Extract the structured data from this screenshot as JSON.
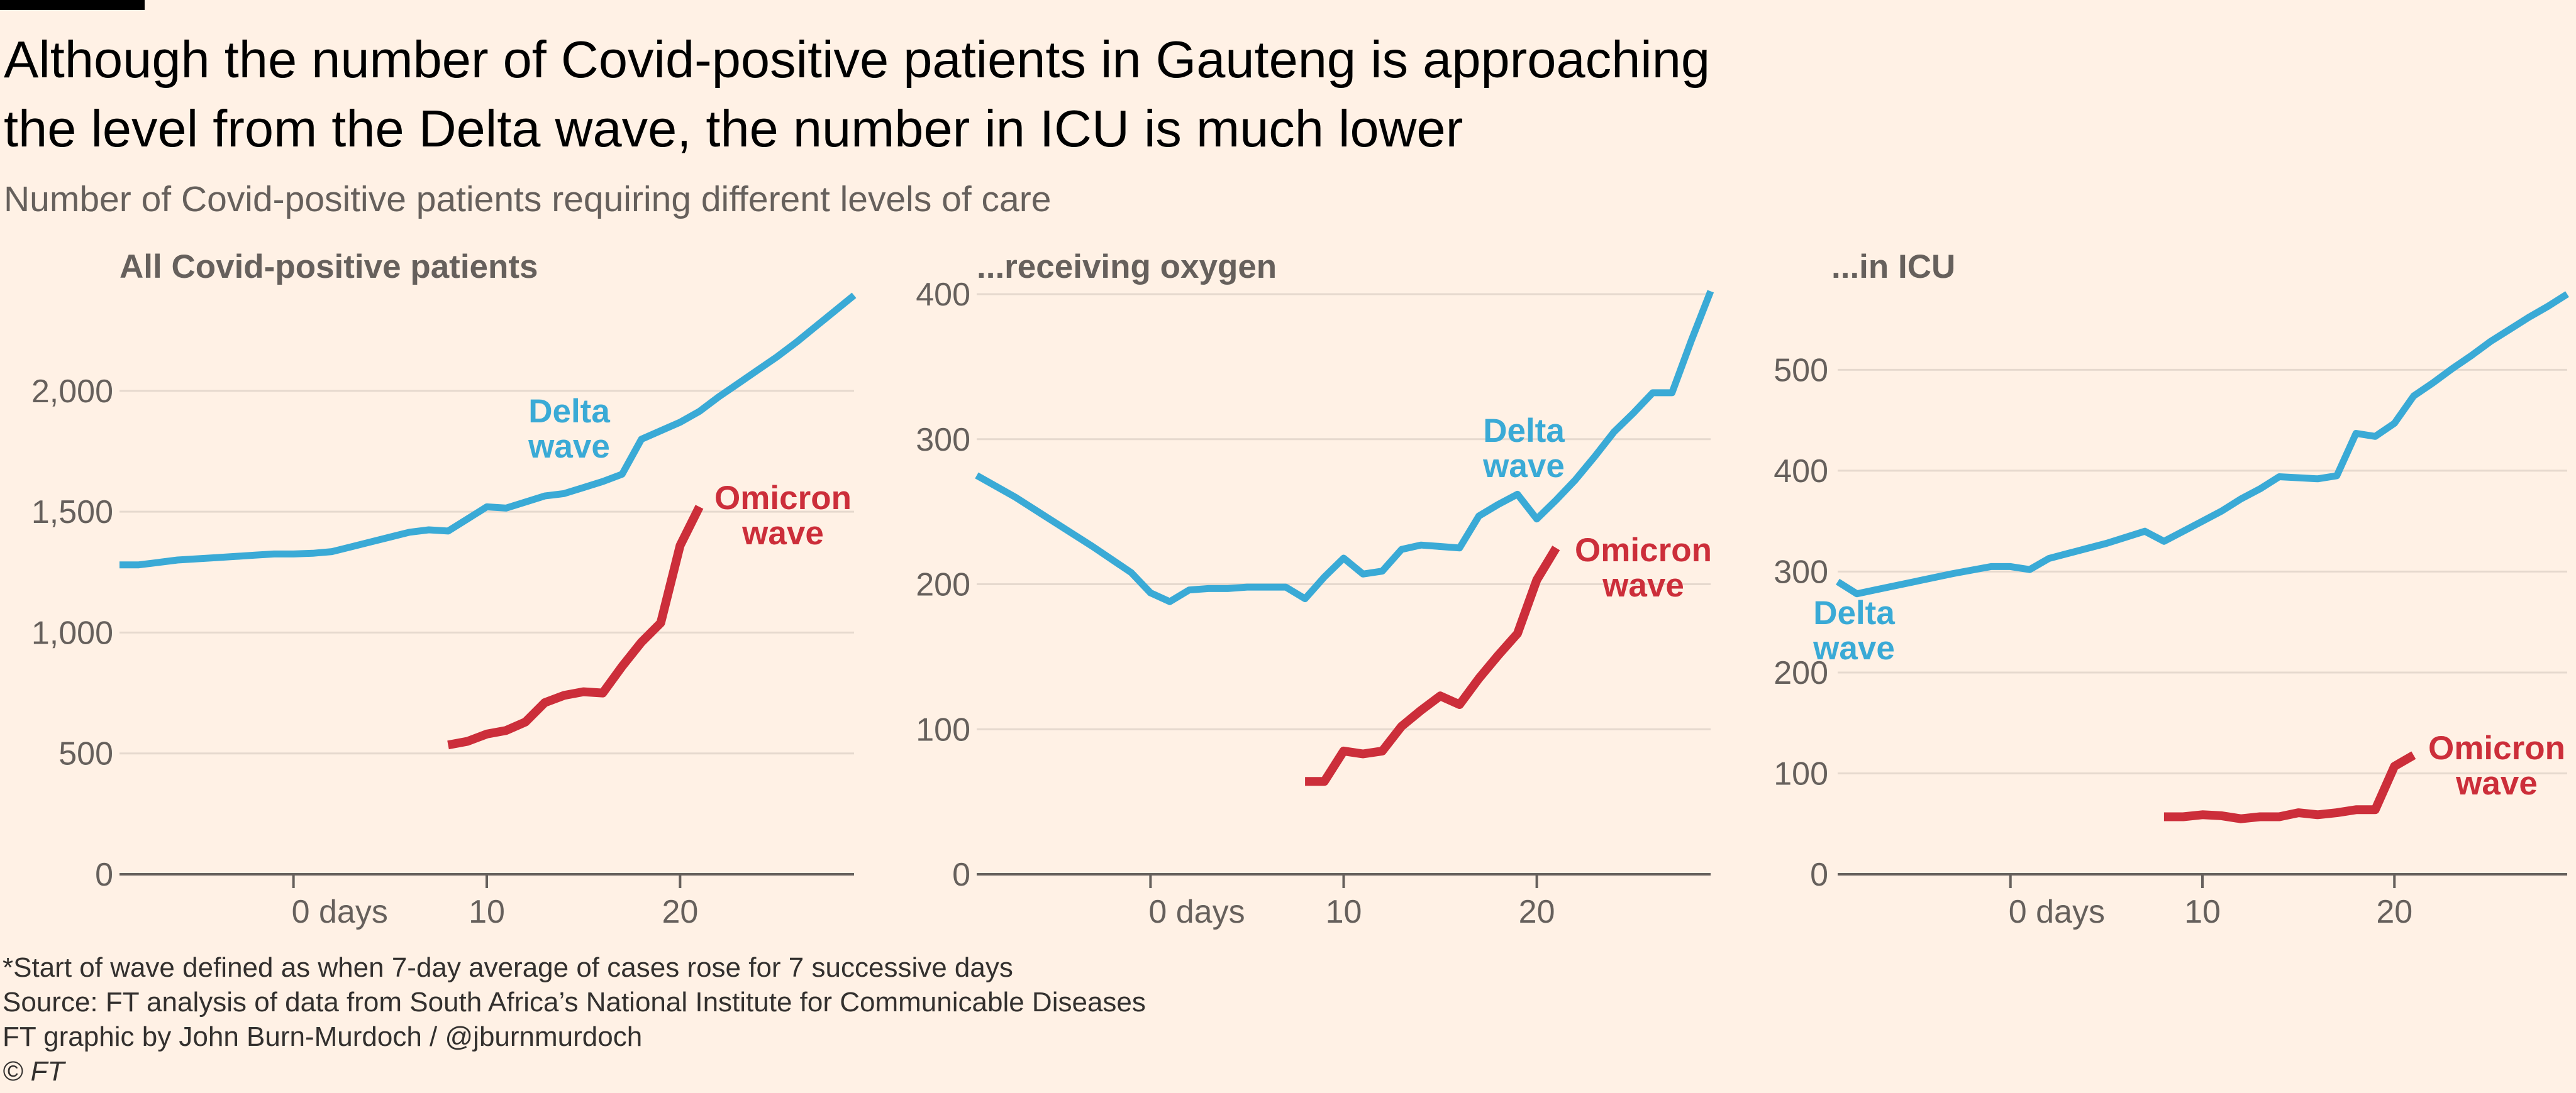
{
  "title": "Although the number of Covid-positive patients in Gauteng is approaching the level from the Delta wave, the number in ICU is much lower",
  "subtitle": "Number of Covid-positive patients requiring different levels of care",
  "footer": {
    "note": "*Start of wave defined as when 7-day average of cases rose for 7 successive days",
    "source": "Source: FT analysis of data from South Africa’s National Institute for Communicable Diseases",
    "credit": "FT graphic by John Burn-Murdoch / @jburnmurdoch",
    "copyright": "© FT"
  },
  "colors": {
    "delta": "#3AAAD6",
    "omicron": "#CC2E3A",
    "background": "#FFF1E5"
  },
  "chart_data": [
    {
      "type": "line",
      "title": "All Covid-positive patients",
      "xlim": [
        -9,
        29
      ],
      "ylim": [
        0,
        2400
      ],
      "x_ticks": [
        0,
        10,
        20
      ],
      "x_tick_labels": [
        "0 days",
        "10",
        "20"
      ],
      "y_ticks": [
        0,
        500,
        1000,
        1500,
        2000
      ],
      "y_tick_labels": [
        "0",
        "500",
        "1,000",
        "1,500",
        "2,000"
      ],
      "series": [
        {
          "name": "Delta wave",
          "label_lines": [
            "Delta",
            "wave"
          ],
          "color": "#3AAAD6",
          "x": [
            -9,
            -8,
            -7,
            -6,
            -5,
            -4,
            -3,
            -2,
            -1,
            0,
            1,
            2,
            3,
            4,
            5,
            6,
            7,
            8,
            9,
            10,
            11,
            12,
            13,
            14,
            15,
            16,
            17,
            18,
            19,
            20,
            21,
            22,
            23,
            24,
            25,
            26,
            27,
            28,
            29
          ],
          "y": [
            1280,
            1280,
            1290,
            1300,
            1305,
            1310,
            1315,
            1320,
            1325,
            1325,
            1328,
            1335,
            1355,
            1375,
            1395,
            1415,
            1425,
            1420,
            1470,
            1520,
            1515,
            1540,
            1565,
            1575,
            1600,
            1625,
            1655,
            1800,
            1835,
            1870,
            1915,
            1975,
            2030,
            2085,
            2140,
            2200,
            2265,
            2330,
            2395
          ]
        },
        {
          "name": "Omicron wave",
          "label_lines": [
            "Omicron",
            "wave"
          ],
          "color": "#CC2E3A",
          "x": [
            8,
            9,
            10,
            11,
            12,
            13,
            14,
            15,
            16,
            17,
            18,
            19,
            20,
            21
          ],
          "y": [
            535,
            550,
            580,
            595,
            630,
            710,
            740,
            755,
            750,
            860,
            960,
            1040,
            1360,
            1520
          ]
        }
      ]
    },
    {
      "type": "line",
      "title": "...receiving oxygen",
      "xlim": [
        -9,
        29
      ],
      "ylim": [
        0,
        400
      ],
      "x_ticks": [
        0,
        10,
        20
      ],
      "x_tick_labels": [
        "0 days",
        "10",
        "20"
      ],
      "y_ticks": [
        0,
        100,
        200,
        300,
        400
      ],
      "y_tick_labels": [
        "0",
        "100",
        "200",
        "300",
        "400"
      ],
      "series": [
        {
          "name": "Delta wave",
          "label_lines": [
            "Delta",
            "wave"
          ],
          "color": "#3AAAD6",
          "x": [
            -9,
            -7,
            -5,
            -3,
            -1,
            0,
            1,
            2,
            3,
            4,
            5,
            6,
            7,
            8,
            9,
            10,
            11,
            12,
            13,
            14,
            15,
            16,
            17,
            18,
            19,
            20,
            21,
            22,
            23,
            24,
            25,
            26,
            27,
            28,
            29
          ],
          "y": [
            275,
            260,
            243,
            226,
            208,
            194,
            188,
            196,
            197,
            197,
            198,
            198,
            198,
            190,
            205,
            218,
            207,
            209,
            224,
            227,
            226,
            225,
            247,
            255,
            262,
            245,
            258,
            272,
            288,
            305,
            318,
            332,
            332,
            368,
            402
          ]
        },
        {
          "name": "Omicron wave",
          "label_lines": [
            "Omicron",
            "wave"
          ],
          "color": "#CC2E3A",
          "x": [
            8,
            9,
            10,
            11,
            12,
            13,
            14,
            15,
            16,
            17,
            18,
            19,
            20,
            21
          ],
          "y": [
            64,
            64,
            85,
            83,
            85,
            102,
            113,
            123,
            117,
            135,
            151,
            166,
            203,
            225
          ]
        }
      ]
    },
    {
      "type": "line",
      "title": "...in ICU",
      "xlim": [
        -9,
        29
      ],
      "ylim": [
        0,
        575
      ],
      "x_ticks": [
        0,
        10,
        20
      ],
      "x_tick_labels": [
        "0 days",
        "10",
        "20"
      ],
      "y_ticks": [
        0,
        100,
        200,
        300,
        400,
        500
      ],
      "y_tick_labels": [
        "0",
        "100",
        "200",
        "300",
        "400",
        "500"
      ],
      "series": [
        {
          "name": "Delta wave",
          "label_lines": [
            "Delta",
            "wave"
          ],
          "color": "#3AAAD6",
          "x": [
            -9,
            -8,
            -7,
            -5,
            -3,
            -1,
            0,
            1,
            2,
            3,
            4,
            5,
            6,
            7,
            8,
            9,
            10,
            11,
            12,
            13,
            14,
            15,
            16,
            17,
            18,
            19,
            20,
            21,
            22,
            23,
            24,
            25,
            26,
            27,
            28,
            29
          ],
          "y": [
            290,
            278,
            282,
            290,
            298,
            305,
            305,
            302,
            313,
            318,
            323,
            328,
            334,
            340,
            330,
            340,
            350,
            360,
            372,
            382,
            394,
            393,
            392,
            395,
            437,
            434,
            447,
            474,
            487,
            501,
            514,
            528,
            540,
            552,
            563,
            575
          ]
        },
        {
          "name": "Omicron wave",
          "label_lines": [
            "Omicron",
            "wave"
          ],
          "color": "#CC2E3A",
          "x": [
            8,
            9,
            10,
            11,
            12,
            13,
            14,
            15,
            16,
            17,
            18,
            19,
            20,
            21
          ],
          "y": [
            57,
            57,
            59,
            58,
            55,
            57,
            57,
            61,
            59,
            61,
            64,
            64,
            107,
            118
          ]
        }
      ]
    }
  ]
}
